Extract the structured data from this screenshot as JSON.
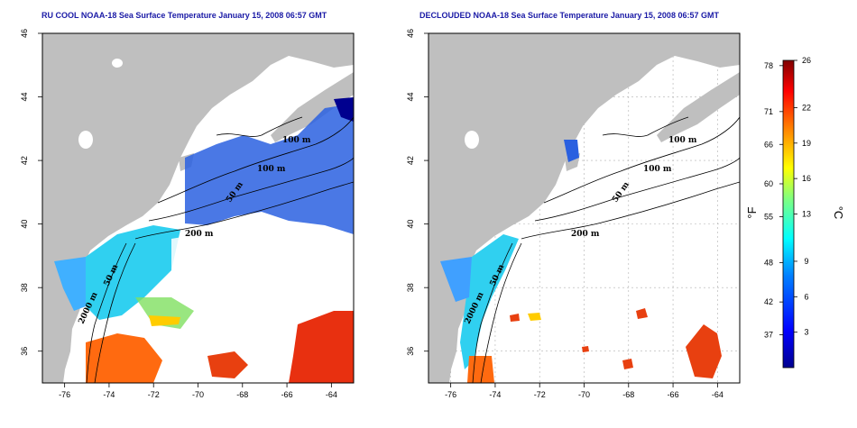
{
  "panels": [
    {
      "id": "left",
      "title": "RU COOL NOAA-18 Sea Surface Temperature January 15, 2008 06:57 GMT",
      "contour_labels": [
        "100 m",
        "100 m",
        "50 m",
        "200 m",
        "50 m",
        "2000 m"
      ]
    },
    {
      "id": "right",
      "title": "DECLOUDED NOAA-18 Sea Surface Temperature January 15, 2008 06:57 GMT",
      "contour_labels": [
        "100 m",
        "100 m",
        "50 m",
        "200 m",
        "50 m",
        "2000 m"
      ]
    }
  ],
  "axes": {
    "x_ticks": [
      "-76",
      "-74",
      "-72",
      "-70",
      "-68",
      "-66",
      "-64"
    ],
    "y_ticks": [
      "36",
      "38",
      "40",
      "42",
      "44",
      "46"
    ],
    "x_range": [
      -77,
      -63
    ],
    "y_range": [
      35,
      46
    ]
  },
  "colorbar": {
    "fahrenheit_label": "°F",
    "celsius_label": "°C",
    "fahrenheit_ticks": [
      "78",
      "71",
      "66",
      "60",
      "55",
      "48",
      "42",
      "37"
    ],
    "celsius_ticks": [
      "26",
      "22",
      "19",
      "16",
      "13",
      "9",
      "6",
      "3"
    ],
    "celsius_range": [
      0,
      26
    ],
    "colors": [
      "#00008f",
      "#0000ff",
      "#0080ff",
      "#00ffff",
      "#80ff80",
      "#ffff00",
      "#ff8000",
      "#ff0000",
      "#800000"
    ]
  },
  "colors": {
    "land": "#bfbfbf",
    "title": "#1a1aa6",
    "grid": "#b0b0b0"
  }
}
